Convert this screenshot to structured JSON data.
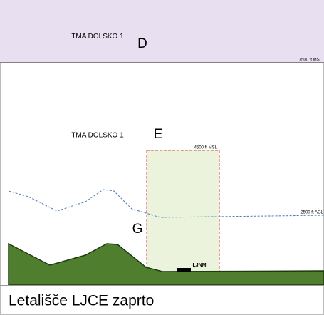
{
  "zones": [
    {
      "name": "TMA DOLSKO 1",
      "class": "D",
      "upper": "7500 ft MSL"
    },
    {
      "name": "TMA DOLSKO 1",
      "class": "E",
      "upper": "4500 ft MSL"
    },
    {
      "class": "G",
      "upper": "2500 ft AGL"
    }
  ],
  "airfield": "LJNM",
  "caption": "Letališče LJCE zaprto"
}
